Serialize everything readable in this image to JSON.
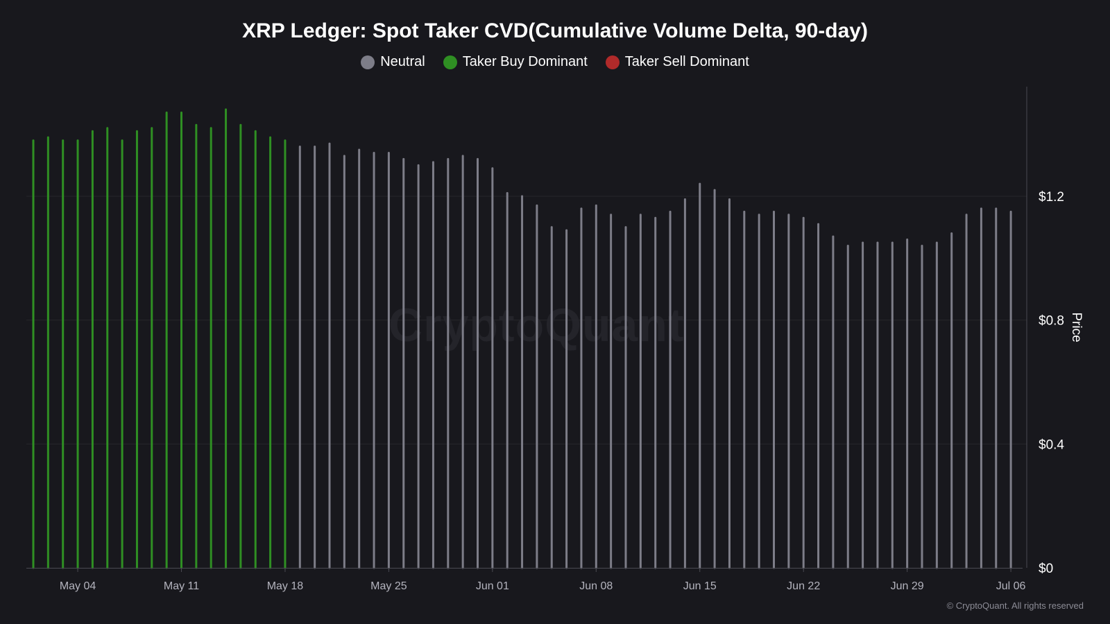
{
  "title": "XRP Ledger: Spot Taker CVD(Cumulative Volume Delta, 90-day)",
  "legend": [
    {
      "label": "Neutral",
      "color": "#7d7d88"
    },
    {
      "label": "Taker Buy Dominant",
      "color": "#2f8f23"
    },
    {
      "label": "Taker Sell Dominant",
      "color": "#b02a2a"
    }
  ],
  "watermark": "CryptoQuant",
  "copyright": "© CryptoQuant. All rights reserved",
  "chart_data": {
    "type": "bar",
    "title": "XRP Ledger: Spot Taker CVD(Cumulative Volume Delta, 90-day)",
    "xlabel": "",
    "ylabel": "Price",
    "ylim": [
      0,
      1.56
    ],
    "y_ticks": [
      0,
      0.4,
      0.8,
      1.2
    ],
    "y_tick_labels": [
      "$0",
      "$0.4",
      "$0.8",
      "$1.2"
    ],
    "x_tick_labels": [
      "May 04",
      "May 11",
      "May 18",
      "May 25",
      "Jun 01",
      "Jun 08",
      "Jun 15",
      "Jun 22",
      "Jun 29",
      "Jul 06"
    ],
    "x_tick_dates": [
      "2025-05-04",
      "2025-05-11",
      "2025-05-18",
      "2025-05-25",
      "2025-06-01",
      "2025-06-08",
      "2025-06-15",
      "2025-06-22",
      "2025-06-29",
      "2025-07-06"
    ],
    "x_first_date": "2025-05-01",
    "series": [
      {
        "name": "Taker Buy Dominant",
        "color": "#2f8f23",
        "x": [
          "2025-05-01",
          "2025-05-02",
          "2025-05-03",
          "2025-05-04",
          "2025-05-05",
          "2025-05-06",
          "2025-05-07",
          "2025-05-08",
          "2025-05-09",
          "2025-05-10",
          "2025-05-11",
          "2025-05-12",
          "2025-05-13",
          "2025-05-14",
          "2025-05-15",
          "2025-05-16",
          "2025-05-17",
          "2025-05-18"
        ],
        "values": [
          1.38,
          1.39,
          1.38,
          1.38,
          1.41,
          1.42,
          1.38,
          1.41,
          1.42,
          1.47,
          1.47,
          1.43,
          1.42,
          1.48,
          1.43,
          1.41,
          1.39,
          1.38
        ]
      },
      {
        "name": "Neutral",
        "color": "#7d7d88",
        "x": [
          "2025-05-19",
          "2025-05-20",
          "2025-05-21",
          "2025-05-22",
          "2025-05-23",
          "2025-05-24",
          "2025-05-25",
          "2025-05-26",
          "2025-05-27",
          "2025-05-28",
          "2025-05-29",
          "2025-05-30",
          "2025-05-31",
          "2025-06-01",
          "2025-06-02",
          "2025-06-03",
          "2025-06-04",
          "2025-06-05",
          "2025-06-06",
          "2025-06-07",
          "2025-06-08",
          "2025-06-09",
          "2025-06-10",
          "2025-06-11",
          "2025-06-12",
          "2025-06-13",
          "2025-06-14",
          "2025-06-15",
          "2025-06-16",
          "2025-06-17",
          "2025-06-18",
          "2025-06-19",
          "2025-06-20",
          "2025-06-21",
          "2025-06-22",
          "2025-06-23",
          "2025-06-24",
          "2025-06-25",
          "2025-06-26",
          "2025-06-27",
          "2025-06-28",
          "2025-06-29",
          "2025-06-30",
          "2025-07-01",
          "2025-07-02",
          "2025-07-03",
          "2025-07-04",
          "2025-07-05",
          "2025-07-06"
        ],
        "values": [
          1.36,
          1.36,
          1.37,
          1.33,
          1.35,
          1.34,
          1.34,
          1.32,
          1.3,
          1.31,
          1.32,
          1.33,
          1.32,
          1.29,
          1.21,
          1.2,
          1.17,
          1.1,
          1.09,
          1.16,
          1.17,
          1.14,
          1.1,
          1.14,
          1.13,
          1.15,
          1.19,
          1.24,
          1.22,
          1.19,
          1.15,
          1.14,
          1.15,
          1.14,
          1.13,
          1.11,
          1.07,
          1.04,
          1.05,
          1.05,
          1.05,
          1.06,
          1.04,
          1.05,
          1.08,
          1.14,
          1.16,
          1.16,
          1.15
        ]
      }
    ],
    "grid": true,
    "legend_position": "top-center"
  }
}
